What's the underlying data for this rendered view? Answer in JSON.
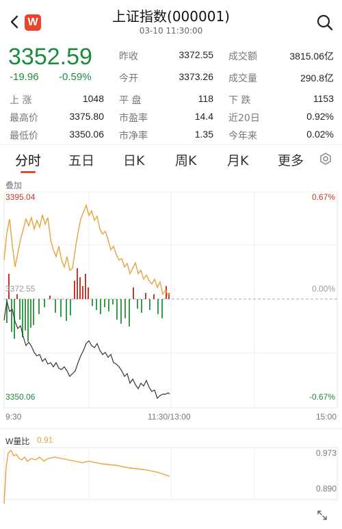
{
  "header": {
    "title": "上证指数(000001)",
    "time": "03-10 11:30:00",
    "brand": "W"
  },
  "quote": {
    "price": "3352.59",
    "change": "-19.96",
    "change_pct": "-0.59%"
  },
  "stats": [
    {
      "label": "昨收",
      "value": "3372.55"
    },
    {
      "label": "成交额",
      "value": "3815.06亿"
    },
    {
      "label": "今开",
      "value": "3373.26"
    },
    {
      "label": "成交量",
      "value": "290.8亿"
    },
    {
      "label": "上 涨",
      "value": "1048"
    },
    {
      "label": "平 盘",
      "value": "118"
    },
    {
      "label": "下 跌",
      "value": "1153"
    },
    {
      "label": "最高价",
      "value": "3375.80"
    },
    {
      "label": "市盈率",
      "value": "14.4"
    },
    {
      "label": "近20日",
      "value": "0.92%"
    },
    {
      "label": "最低价",
      "value": "3350.06"
    },
    {
      "label": "市净率",
      "value": "1.35"
    },
    {
      "label": "今年来",
      "value": "0.02%"
    }
  ],
  "tabs": [
    "分时",
    "五日",
    "日K",
    "周K",
    "月K",
    "更多"
  ],
  "overlay_label": "叠加",
  "chart": {
    "y_max": "3395.04",
    "y_mid": "3372.55",
    "y_min": "3350.06",
    "pct_max": "0.67%",
    "pct_mid": "0.00%",
    "pct_min": "-0.67%",
    "x_start": "9:30",
    "x_mid": "11:30/13:00",
    "x_end": "15:00"
  },
  "wratio": {
    "label": "W量比",
    "value": "0.91",
    "y_top": "0.973",
    "y_bottom": "0.890"
  },
  "colors": {
    "green": "#1e8b3c",
    "red": "#c0392b",
    "orange": "#e8a23b",
    "brand": "#e8452b"
  }
}
